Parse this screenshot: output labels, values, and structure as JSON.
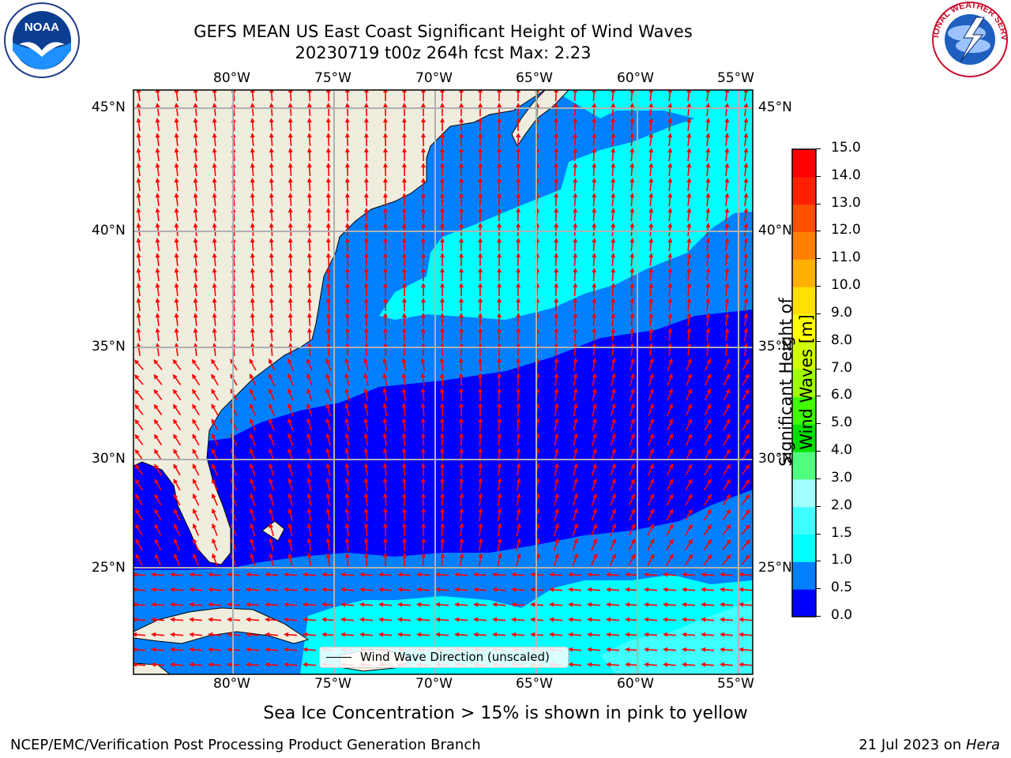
{
  "title": {
    "line1": "GEFS MEAN US East Coast Significant Height of Wind Waves",
    "line2": "20230719 t00z 264h fcst   Max: 2.23"
  },
  "logos": {
    "left": {
      "text": "NOAA",
      "icon": "noaa-logo"
    },
    "right": {
      "text": "NATIONAL WEATHER SERVICE",
      "icon": "nws-logo"
    }
  },
  "map": {
    "lon_labels": [
      "80°W",
      "75°W",
      "70°W",
      "65°W",
      "60°W",
      "55°W"
    ],
    "lat_labels": [
      "45°N",
      "40°N",
      "35°N",
      "30°N",
      "25°N"
    ],
    "lon_range": [
      -85,
      -54.3
    ],
    "lat_range": [
      20.4,
      45.9
    ],
    "arrow_color": "#ff0000",
    "land_color": "#efedde",
    "legend": "Wind Wave Direction (unscaled)"
  },
  "colorbar": {
    "label": "Significant Height of Wind Waves [m]",
    "ticks": [
      "0.0",
      "0.5",
      "1.0",
      "1.5",
      "2.0",
      "3.0",
      "4.0",
      "5.0",
      "6.0",
      "7.0",
      "8.0",
      "9.0",
      "10.0",
      "11.0",
      "12.0",
      "13.0",
      "14.0",
      "15.0"
    ],
    "colors": [
      "#0000ff",
      "#0080ff",
      "#00ffff",
      "#40ffff",
      "#a0ffff",
      "#50ff80",
      "#00e000",
      "#40ff00",
      "#a0ff00",
      "#d0ff00",
      "#ffff00",
      "#ffe000",
      "#ffb000",
      "#ff8000",
      "#ff5000",
      "#ff2000",
      "#ff0000"
    ]
  },
  "note": "Sea Ice Concentration > 15% is shown in pink to yellow",
  "footer": {
    "left": "NCEP/EMC/Verification Post Processing Product Generation Branch",
    "right_date": "21 Jul 2023 on ",
    "right_host": "Hera"
  }
}
